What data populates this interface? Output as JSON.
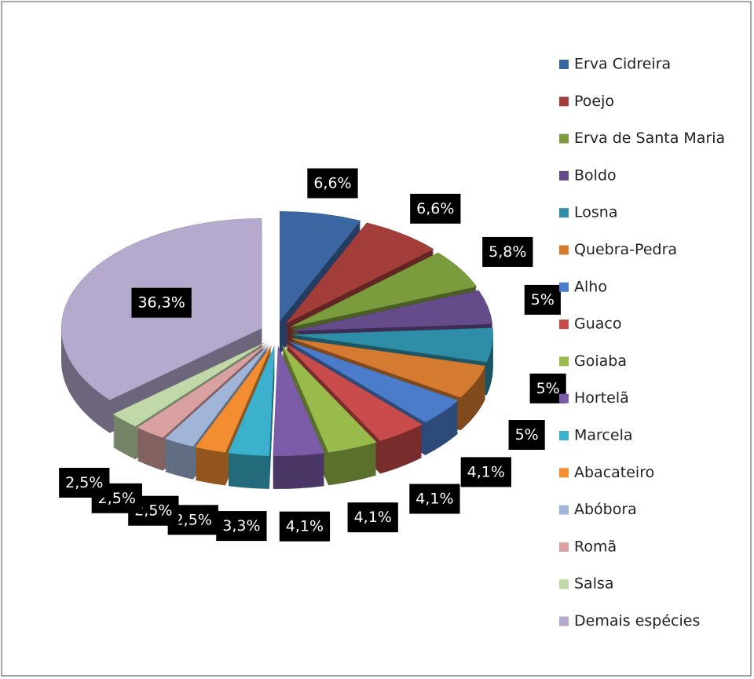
{
  "chart_data": {
    "type": "pie3d",
    "categories": [
      "Erva Cidreira",
      "Poejo",
      "Erva de Santa Maria",
      "Boldo",
      "Losna",
      "Quebra-Pedra",
      "Alho",
      "Guaco",
      "Goiaba",
      "Hortelã",
      "Marcela",
      "Abacateiro",
      "Abóbora",
      "Romã",
      "Salsa",
      "Demais espécies"
    ],
    "values": [
      6.6,
      6.6,
      5.8,
      5,
      5,
      5,
      4.1,
      4.1,
      4.1,
      4.1,
      3.3,
      2.5,
      2.5,
      2.5,
      2.5,
      36.3
    ],
    "value_labels": [
      "6,6%",
      "6,6%",
      "5,8%",
      "5%",
      "5%",
      "5%",
      "4,1%",
      "4,1%",
      "4,1%",
      "4,1%",
      "3,3%",
      "2,5%",
      "2,5%",
      "2,5%",
      "2,5%",
      "36,3%"
    ],
    "colors": [
      "#3c66a1",
      "#a33d3a",
      "#7b9c3d",
      "#664b8b",
      "#2f8ea7",
      "#d57b31",
      "#4b7cc9",
      "#c94b4b",
      "#99bb4c",
      "#7c5ba9",
      "#3bb1cd",
      "#f28d31",
      "#a1b5d9",
      "#d9a1a1",
      "#c1d9a9",
      "#b5a9cd"
    ],
    "legend": "right"
  }
}
